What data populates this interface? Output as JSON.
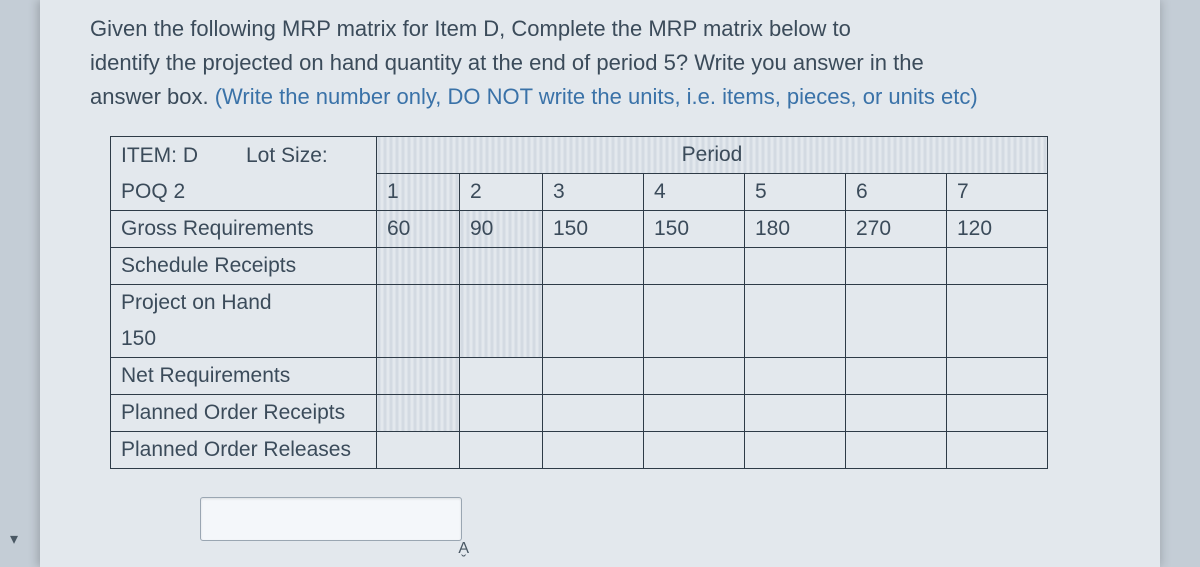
{
  "question": {
    "line1": "Given the following MRP matrix for Item D, Complete the MRP matrix below to",
    "line2": "identify the projected on hand quantity at the end of period 5? Write you answer in the",
    "line3_plain": "answer box. ",
    "line3_hint": "(Write the number only, DO NOT write the units, i.e. items, pieces, or units etc)"
  },
  "table": {
    "item_label": "ITEM: D",
    "lotsize_label": "Lot Size:",
    "poq_label": "POQ 2",
    "period_header": "Period",
    "periods": [
      "1",
      "2",
      "3",
      "4",
      "5",
      "6",
      "7"
    ],
    "rows": {
      "gross_req": {
        "label": "Gross Requirements",
        "vals": [
          "60",
          "90",
          "150",
          "150",
          "180",
          "270",
          "120"
        ]
      },
      "sched_rec": {
        "label": "Schedule Receipts",
        "vals": [
          "",
          "",
          "",
          "",
          "",
          "",
          ""
        ]
      },
      "proj_hand_label": "Project on Hand",
      "proj_hand_initial": "150",
      "proj_hand_vals": [
        "",
        "",
        "",
        "",
        "",
        "",
        ""
      ],
      "net_req": {
        "label": "Net Requirements",
        "vals": [
          "",
          "",
          "",
          "",
          "",
          "",
          ""
        ]
      },
      "plan_rec": {
        "label": "Planned Order Receipts",
        "vals": [
          "",
          "",
          "",
          "",
          "",
          "",
          ""
        ]
      },
      "plan_rel": {
        "label": "Planned Order Releases",
        "vals": [
          "",
          "",
          "",
          "",
          "",
          "",
          ""
        ]
      }
    }
  },
  "colors": {
    "page_bg": "#c4cdd6",
    "paper_bg": "#e3e8ed",
    "text": "#3b4b5a",
    "hint": "#3a72a8",
    "border": "#2e3b47"
  },
  "answer_input": {
    "value": "",
    "placeholder": ""
  },
  "stepper_glyph": "A̬",
  "left_arrow_glyph": "▾"
}
